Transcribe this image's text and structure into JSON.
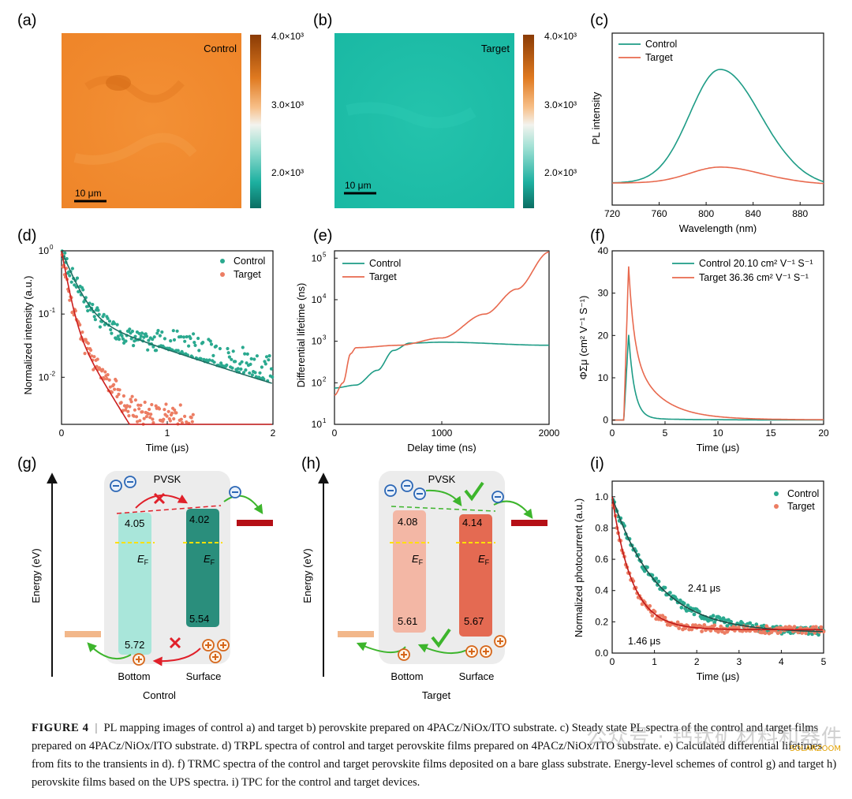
{
  "panels": {
    "a": {
      "letter": "(a)",
      "label": "Control",
      "scale": "10 μm",
      "cb_ticks": [
        "4.0×10³",
        "3.0×10³",
        "2.0×10³"
      ]
    },
    "b": {
      "letter": "(b)",
      "label": "Target",
      "scale": "10 μm",
      "cb_ticks": [
        "4.0×10³",
        "3.0×10³",
        "2.0×10³"
      ]
    },
    "g": {
      "letter": "(g)",
      "axis": "Energy (eV)",
      "title": "PVSK",
      "group": "Control",
      "bottom": "Bottom",
      "surface": "Surface",
      "ef": "E",
      "ef_sub": "F",
      "vals": {
        "cb_bottom": "4.05",
        "cb_surface": "4.02",
        "vb_surface": "5.54",
        "vb_bottom": "5.72"
      }
    },
    "h": {
      "letter": "(h)",
      "axis": "Energy (eV)",
      "title": "PVSK",
      "group": "Target",
      "bottom": "Bottom",
      "surface": "Surface",
      "ef": "E",
      "ef_sub": "F",
      "vals": {
        "cb_bottom": "4.08",
        "cb_surface": "4.14",
        "vb_bottom": "5.61",
        "vb_surface": "5.67"
      }
    }
  },
  "colors": {
    "control": "#1e9c86",
    "target": "#e8694e",
    "map_control": "#f08a2a",
    "map_target": "#1fbfa8"
  },
  "chart_data": [
    {
      "id": "c",
      "letter": "(c)",
      "type": "line",
      "xlabel": "Wavelength (nm)",
      "ylabel": "PL intensity",
      "xlim": [
        720,
        900
      ],
      "xticks": [
        720,
        760,
        800,
        840,
        880
      ],
      "series": [
        {
          "name": "Control",
          "peak": 812,
          "height": 1.0
        },
        {
          "name": "Target",
          "peak": 812,
          "height": 0.14
        }
      ]
    },
    {
      "id": "d",
      "letter": "(d)",
      "type": "scatter",
      "xlabel": "Time (μs)",
      "ylabel": "Normalized intensity (a.u.)",
      "xlim": [
        0,
        2
      ],
      "ylim": [
        0.0018,
        1
      ],
      "yscale": "log",
      "xticks": [
        "0",
        "1",
        "2"
      ],
      "yticks": [
        {
          "v": 1,
          "t": "10",
          "e": "0"
        },
        {
          "v": 0.1,
          "t": "10",
          "e": "-1"
        },
        {
          "v": 0.01,
          "t": "10",
          "e": "-2"
        }
      ],
      "series": [
        {
          "name": "Control",
          "tau": [
            0.1,
            0.75
          ],
          "amp": [
            0.9,
            0.1
          ]
        },
        {
          "name": "Target",
          "tau": [
            0.045,
            0.16
          ],
          "amp": [
            0.9,
            0.1
          ]
        }
      ]
    },
    {
      "id": "e",
      "letter": "(e)",
      "type": "line",
      "xlabel": "Delay time (ns)",
      "ylabel": "Differential lifetime (ns)",
      "xlim": [
        0,
        2000
      ],
      "ylim": [
        10,
        150000
      ],
      "yscale": "log",
      "xticks": [
        "0",
        "1000",
        "2000"
      ],
      "yticks": [
        {
          "v": 10,
          "t": "10",
          "e": "1"
        },
        {
          "v": 100,
          "t": "10",
          "e": "2"
        },
        {
          "v": 1000,
          "t": "10",
          "e": "3"
        },
        {
          "v": 10000,
          "t": "10",
          "e": "4"
        },
        {
          "v": 100000,
          "t": "10",
          "e": "5"
        }
      ],
      "series": [
        {
          "name": "Control",
          "points": [
            [
              0,
              75
            ],
            [
              200,
              88
            ],
            [
              400,
              200
            ],
            [
              550,
              600
            ],
            [
              700,
              900
            ],
            [
              1000,
              950
            ],
            [
              2000,
              800
            ]
          ]
        },
        {
          "name": "Target",
          "points": [
            [
              0,
              50
            ],
            [
              80,
              100
            ],
            [
              150,
              500
            ],
            [
              200,
              700
            ],
            [
              600,
              800
            ],
            [
              1000,
              1200
            ],
            [
              1400,
              4500
            ],
            [
              1700,
              18000
            ],
            [
              2000,
              140000
            ]
          ]
        }
      ]
    },
    {
      "id": "f",
      "letter": "(f)",
      "type": "line",
      "xlabel": "Time (μs)",
      "ylabel": "ΦΣμ (cm² V⁻¹ S⁻¹)",
      "xlim": [
        0,
        20
      ],
      "ylim": [
        -1,
        40
      ],
      "xticks": [
        "0",
        "5",
        "10",
        "15",
        "20"
      ],
      "yticks": [
        "0",
        "10",
        "20",
        "30",
        "40"
      ],
      "series": [
        {
          "name": "Control",
          "legend": "Control  20.10 cm² V⁻¹ S⁻¹",
          "peak": 20.1,
          "tau": 0.55
        },
        {
          "name": "Target",
          "legend": "Target  36.36 cm² V⁻¹ S⁻¹",
          "peak": 36.36,
          "tau": 2.6
        }
      ]
    },
    {
      "id": "i",
      "letter": "(i)",
      "type": "scatter",
      "xlabel": "Time (μs)",
      "ylabel": "Normalized photocurrent (a.u.)",
      "xlim": [
        0,
        5
      ],
      "ylim": [
        0,
        1.1
      ],
      "xticks": [
        "0",
        "1",
        "2",
        "3",
        "4",
        "5"
      ],
      "yticks": [
        "0.0",
        "0.2",
        "0.4",
        "0.6",
        "0.8",
        "1.0"
      ],
      "annotations": [
        "2.41 μs",
        "1.46 μs"
      ],
      "series": [
        {
          "name": "Control",
          "tau": 1.05,
          "base": 0.13
        },
        {
          "name": "Target",
          "tau": 0.47,
          "base": 0.15
        }
      ]
    }
  ],
  "caption": {
    "label": "FIGURE 4",
    "sep": "|",
    "text": "PL mapping images of control a) and target b) perovskite prepared on 4PACz/NiOx/ITO substrate. c) Steady state PL spectra of the control and target films prepared on 4PACz/NiOx/ITO substrate. d) TRPL spectra of control and target perovskite films prepared on 4PACz/NiOx/ITO substrate. e) Calculated differential lifetimes from fits to the transients in d). f) TRMC spectra of the control and target perovskite films deposited on a bare glass substrate. Energy-level schemes of control g) and target h) perovskite films based on the UPS spectra. i) TPC for the control and target devices."
  },
  "watermark": "公众号 · 钙钛矿材料和器件",
  "watermark2": "SOLARZOOM"
}
